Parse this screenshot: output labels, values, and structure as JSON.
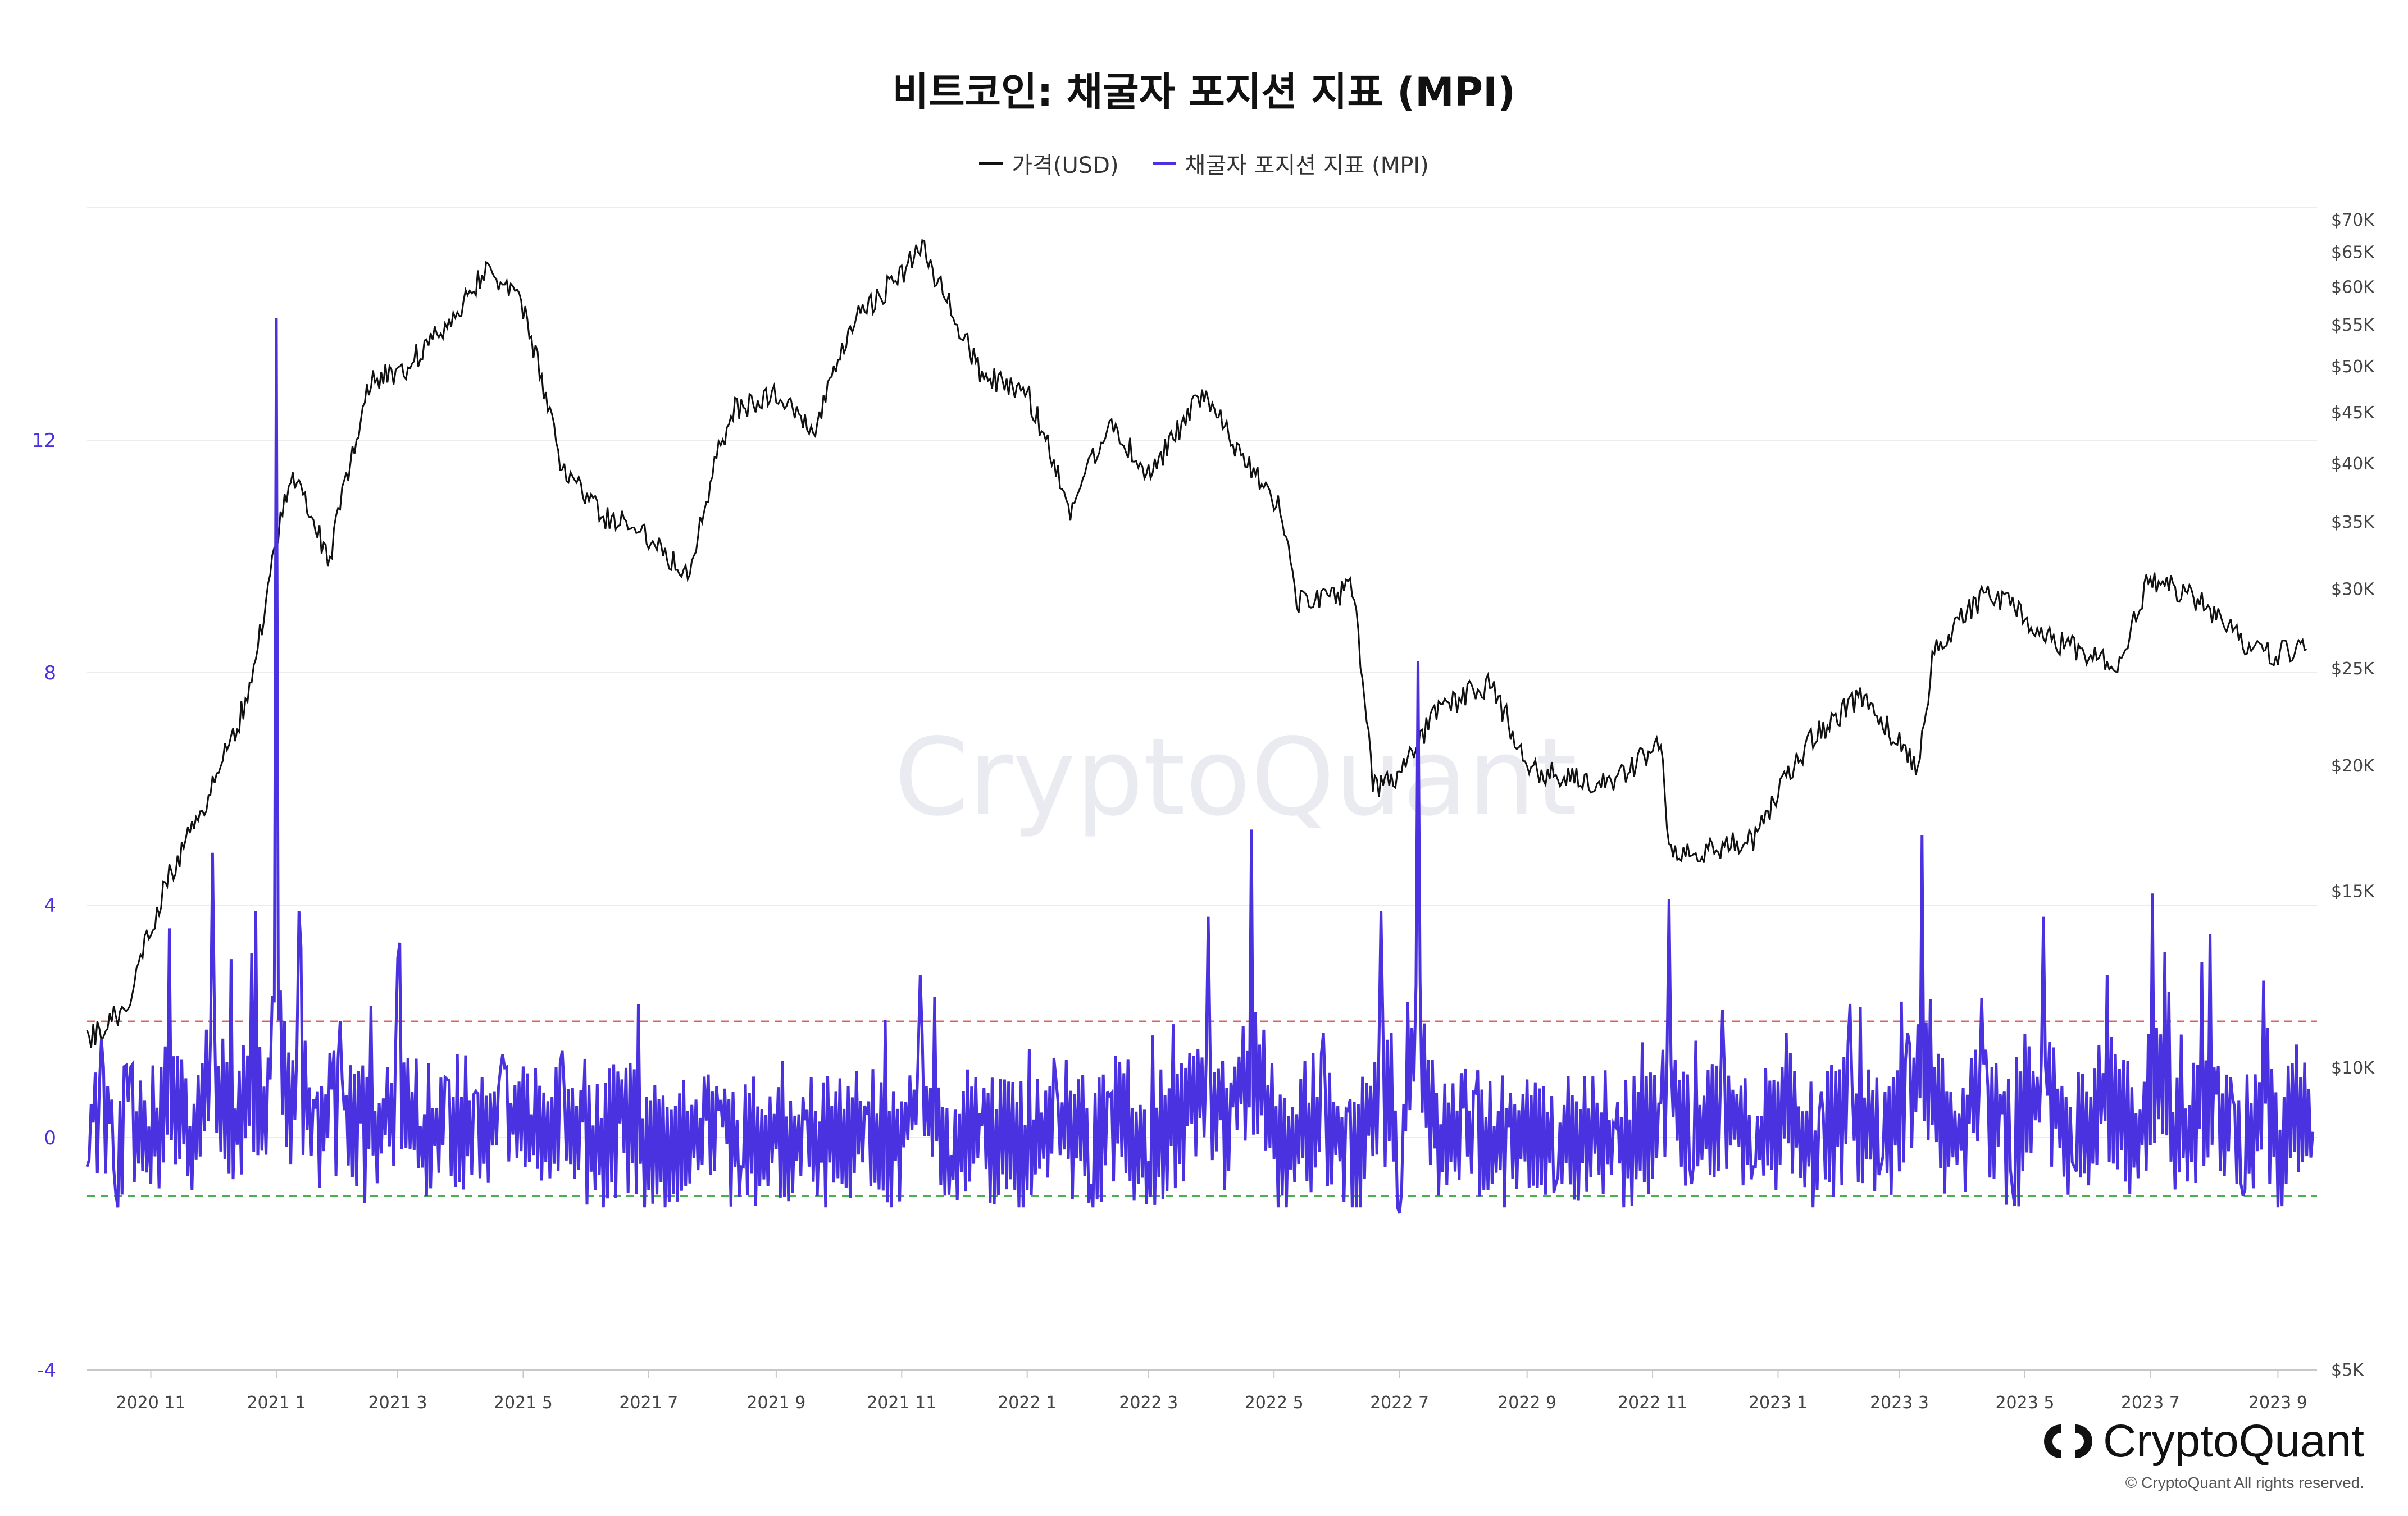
{
  "chart_data": {
    "type": "line",
    "title": "비트코인: 채굴자 포지션 지표 (MPI)",
    "legend_position": "top-center",
    "grid": true,
    "series": [
      {
        "name": "가격(USD)",
        "axis": "right",
        "color": "#111111",
        "scale": "log",
        "x": [
          "2020-10-01",
          "2020-10-20",
          "2020-11-10",
          "2020-12-01",
          "2020-12-20",
          "2021-01-08",
          "2021-01-27",
          "2021-02-15",
          "2021-03-05",
          "2021-03-25",
          "2021-04-14",
          "2021-05-01",
          "2021-05-19",
          "2021-06-08",
          "2021-06-27",
          "2021-07-20",
          "2021-08-10",
          "2021-08-30",
          "2021-09-20",
          "2021-10-10",
          "2021-11-02",
          "2021-11-10",
          "2021-11-25",
          "2021-12-10",
          "2022-01-01",
          "2022-01-22",
          "2022-02-10",
          "2022-03-01",
          "2022-03-28",
          "2022-04-15",
          "2022-05-05",
          "2022-05-12",
          "2022-06-08",
          "2022-06-18",
          "2022-07-01",
          "2022-07-20",
          "2022-08-14",
          "2022-09-01",
          "2022-09-20",
          "2022-10-10",
          "2022-11-05",
          "2022-11-09",
          "2022-11-25",
          "2022-12-20",
          "2023-01-15",
          "2023-02-10",
          "2023-03-10",
          "2023-03-18",
          "2023-04-14",
          "2023-05-10",
          "2023-06-15",
          "2023-06-30",
          "2023-07-20",
          "2023-08-16",
          "2023-09-01",
          "2023-09-15"
        ],
        "values": [
          10600,
          11500,
          15500,
          19000,
          23800,
          39000,
          32000,
          48000,
          50000,
          55000,
          63000,
          57000,
          40000,
          35500,
          34500,
          31000,
          45000,
          47000,
          43000,
          56000,
          62000,
          66000,
          57000,
          49000,
          47000,
          36000,
          44000,
          39000,
          47000,
          40500,
          36000,
          29000,
          30000,
          19000,
          19500,
          22800,
          24200,
          20000,
          19400,
          19200,
          21000,
          16500,
          16500,
          16800,
          21000,
          23500,
          20000,
          26000,
          30000,
          27000,
          25000,
          30500,
          29800,
          26500,
          25800,
          26600
        ]
      },
      {
        "name": "채굴자 포지션 지표 (MPI)",
        "axis": "left",
        "color": "#4b32e0",
        "x": [
          "2020-10-01",
          "2020-10-08",
          "2020-10-15",
          "2020-10-22",
          "2020-11-01",
          "2020-11-10",
          "2020-11-20",
          "2020-12-01",
          "2020-12-12",
          "2020-12-22",
          "2020-12-29",
          "2021-01-01",
          "2021-01-05",
          "2021-01-12",
          "2021-01-20",
          "2021-02-01",
          "2021-02-15",
          "2021-03-01",
          "2021-03-12",
          "2021-03-25",
          "2021-04-08",
          "2021-04-22",
          "2021-05-05",
          "2021-05-20",
          "2021-06-05",
          "2021-06-20",
          "2021-07-01",
          "2021-07-15",
          "2021-08-01",
          "2021-08-15",
          "2021-09-01",
          "2021-09-15",
          "2021-10-01",
          "2021-10-15",
          "2021-10-29",
          "2021-11-10",
          "2021-11-25",
          "2021-12-10",
          "2022-01-01",
          "2022-01-15",
          "2022-02-01",
          "2022-02-15",
          "2022-03-01",
          "2022-03-15",
          "2022-03-30",
          "2022-04-05",
          "2022-04-20",
          "2022-05-05",
          "2022-05-25",
          "2022-06-10",
          "2022-06-22",
          "2022-07-01",
          "2022-07-10",
          "2022-07-20",
          "2022-08-01",
          "2022-08-15",
          "2022-09-01",
          "2022-09-15",
          "2022-10-01",
          "2022-10-20",
          "2022-11-05",
          "2022-11-09",
          "2022-11-20",
          "2022-12-05",
          "2022-12-20",
          "2023-01-05",
          "2023-01-20",
          "2023-02-05",
          "2023-02-20",
          "2023-03-05",
          "2023-03-12",
          "2023-03-25",
          "2023-04-10",
          "2023-04-25",
          "2023-05-10",
          "2023-05-25",
          "2023-06-10",
          "2023-06-25",
          "2023-07-02",
          "2023-07-15",
          "2023-07-30",
          "2023-08-15",
          "2023-08-25",
          "2023-09-01",
          "2023-09-10",
          "2023-09-18"
        ],
        "values": [
          -0.5,
          1.7,
          -1.0,
          1.2,
          -0.8,
          3.6,
          0.2,
          4.9,
          0.5,
          3.9,
          1.0,
          14.1,
          2.0,
          3.9,
          0.5,
          2.0,
          -0.2,
          3.1,
          0.2,
          1.0,
          0.8,
          1.2,
          0.4,
          1.5,
          -0.9,
          1.2,
          -0.9,
          -1.1,
          0.8,
          -0.5,
          -0.2,
          0.3,
          -0.7,
          0.4,
          -0.4,
          2.8,
          -0.3,
          0.2,
          -0.9,
          1.0,
          -0.8,
          1.3,
          -0.4,
          1.1,
          3.8,
          0.3,
          5.3,
          -1.0,
          1.8,
          -1.2,
          3.9,
          -1.3,
          8.2,
          -1.0,
          0.5,
          -0.8,
          1.0,
          -0.8,
          0.5,
          -0.7,
          0.6,
          4.1,
          -0.8,
          2.2,
          -0.5,
          1.8,
          -0.9,
          2.3,
          -0.5,
          1.8,
          5.2,
          -0.5,
          2.4,
          -0.9,
          3.8,
          -0.5,
          2.8,
          -0.7,
          4.2,
          -0.6,
          3.5,
          -1.0,
          2.7,
          -1.2,
          1.6,
          0.1
        ]
      }
    ],
    "left_axis": {
      "ticks": [
        -4,
        0,
        4,
        8,
        12
      ],
      "ylim": [
        -4,
        16
      ]
    },
    "right_axis": {
      "scale": "log",
      "ticks": [
        "$5K",
        "$10K",
        "$15K",
        "$20K",
        "$25K",
        "$30K",
        "$35K",
        "$40K",
        "$45K",
        "$50K",
        "$55K",
        "$60K",
        "$65K",
        "$70K"
      ],
      "tick_values": [
        5000,
        10000,
        15000,
        20000,
        25000,
        30000,
        35000,
        40000,
        45000,
        50000,
        55000,
        60000,
        65000,
        70000
      ]
    },
    "x_ticks": [
      "2020 11",
      "2021 1",
      "2021 3",
      "2021 5",
      "2021 7",
      "2021 9",
      "2021 11",
      "2022 1",
      "2022 3",
      "2022 5",
      "2022 7",
      "2022 9",
      "2022 11",
      "2023 1",
      "2023 3",
      "2023 5",
      "2023 7",
      "2023 9"
    ],
    "x_range": [
      "2020-10-01",
      "2023-09-20"
    ],
    "reference_lines": [
      {
        "value": 2,
        "color": "#e06060",
        "style": "dashed"
      },
      {
        "value": -1,
        "color": "#4caf50",
        "style": "dashed"
      }
    ],
    "watermark": "CryptoQuant"
  },
  "brand": {
    "name": "CryptoQuant",
    "copyright": "© CryptoQuant All rights reserved."
  }
}
